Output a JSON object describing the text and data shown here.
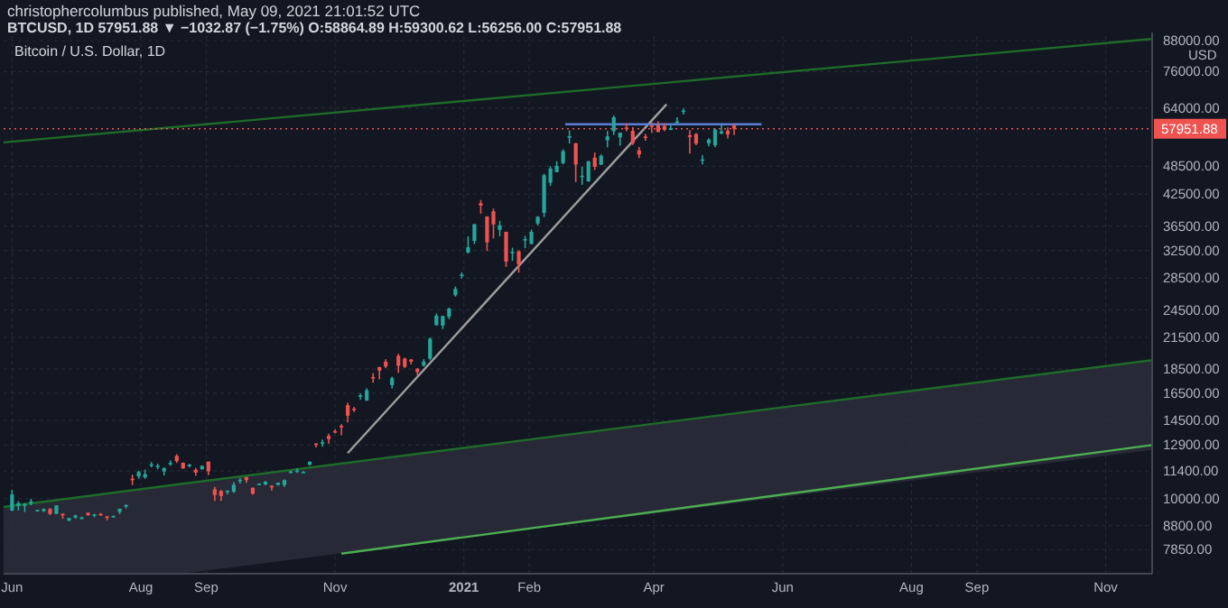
{
  "chart_data": {
    "type": "candlestick",
    "title": "christophercolumbus published, May 09, 2021 21:01:52 UTC",
    "subtitle": "BTCUSD, 1D 57951.88 ▼ −1032.87 (−1.75%) O:58864.89 H:59300.62 L:56256.00 C:57951.88",
    "annotations": [
      "Bitcoin / U.S. Dollar, 1D"
    ],
    "ylabel": "USD",
    "log": true,
    "grid": true,
    "xlim": [
      "2020-05-28",
      "2021-11-23"
    ],
    "xticks": [
      {
        "value": "2020-06-01",
        "label": "Jun"
      },
      {
        "value": "2020-08-01",
        "label": "Aug"
      },
      {
        "value": "2020-09-01",
        "label": "Sep"
      },
      {
        "value": "2020-11-01",
        "label": "Nov"
      },
      {
        "value": "2021-01-01",
        "label": "2021"
      },
      {
        "value": "2021-02-01",
        "label": "Feb"
      },
      {
        "value": "2021-04-01",
        "label": "Apr"
      },
      {
        "value": "2021-06-01",
        "label": "Jun"
      },
      {
        "value": "2021-08-01",
        "label": "Aug"
      },
      {
        "value": "2021-09-01",
        "label": "Sep"
      },
      {
        "value": "2021-11-01",
        "label": "Nov"
      }
    ],
    "ylim": [
      7000,
      90000
    ],
    "yticks": [
      {
        "value": 7850,
        "label": "7850.00"
      },
      {
        "value": 8800,
        "label": "8800.00"
      },
      {
        "value": 10000,
        "label": "10000.00"
      },
      {
        "value": 11400,
        "label": "11400.00"
      },
      {
        "value": 12900,
        "label": "12900.00"
      },
      {
        "value": 14500,
        "label": "14500.00"
      },
      {
        "value": 16500,
        "label": "16500.00"
      },
      {
        "value": 18500,
        "label": "18500.00"
      },
      {
        "value": 21500,
        "label": "21500.00"
      },
      {
        "value": 24500,
        "label": "24500.00"
      },
      {
        "value": 28500,
        "label": "28500.00"
      },
      {
        "value": 32500,
        "label": "32500.00"
      },
      {
        "value": 36500,
        "label": "36500.00"
      },
      {
        "value": 42500,
        "label": "42500.00"
      },
      {
        "value": 48500,
        "label": "48500.00"
      },
      {
        "value": 64000,
        "label": "64000.00"
      },
      {
        "value": 76000,
        "label": "76000.00"
      },
      {
        "value": 88000,
        "label": "88000.00"
      }
    ],
    "ref_lines": [
      {
        "axis": "y",
        "value": 57951.88,
        "label": "57951.88",
        "color": "#ef5350",
        "line_style": "dotted"
      }
    ],
    "x": [
      "2020-06-01",
      "2020-06-04",
      "2020-06-07",
      "2020-06-10",
      "2020-06-13",
      "2020-06-16",
      "2020-06-19",
      "2020-06-22",
      "2020-06-25",
      "2020-06-28",
      "2020-07-01",
      "2020-07-04",
      "2020-07-07",
      "2020-07-10",
      "2020-07-13",
      "2020-07-16",
      "2020-07-19",
      "2020-07-22",
      "2020-07-25",
      "2020-07-28",
      "2020-07-31",
      "2020-08-03",
      "2020-08-06",
      "2020-08-09",
      "2020-08-12",
      "2020-08-15",
      "2020-08-18",
      "2020-08-21",
      "2020-08-24",
      "2020-08-27",
      "2020-08-30",
      "2020-09-02",
      "2020-09-05",
      "2020-09-08",
      "2020-09-11",
      "2020-09-14",
      "2020-09-17",
      "2020-09-20",
      "2020-09-23",
      "2020-09-26",
      "2020-09-29",
      "2020-10-02",
      "2020-10-05",
      "2020-10-08",
      "2020-10-11",
      "2020-10-14",
      "2020-10-17",
      "2020-10-20",
      "2020-10-23",
      "2020-10-26",
      "2020-10-29",
      "2020-11-01",
      "2020-11-04",
      "2020-11-07",
      "2020-11-10",
      "2020-11-13",
      "2020-11-16",
      "2020-11-19",
      "2020-11-22",
      "2020-11-25",
      "2020-11-28",
      "2020-12-01",
      "2020-12-04",
      "2020-12-07",
      "2020-12-10",
      "2020-12-13",
      "2020-12-16",
      "2020-12-19",
      "2020-12-22",
      "2020-12-25",
      "2020-12-28",
      "2020-12-31",
      "2021-01-03",
      "2021-01-06",
      "2021-01-09",
      "2021-01-12",
      "2021-01-15",
      "2021-01-18",
      "2021-01-21",
      "2021-01-24",
      "2021-01-27",
      "2021-01-30",
      "2021-02-02",
      "2021-02-05",
      "2021-02-08",
      "2021-02-11",
      "2021-02-14",
      "2021-02-17",
      "2021-02-20",
      "2021-02-23",
      "2021-02-26",
      "2021-03-01",
      "2021-03-04",
      "2021-03-07",
      "2021-03-10",
      "2021-03-13",
      "2021-03-16",
      "2021-03-19",
      "2021-03-22",
      "2021-03-25",
      "2021-03-28",
      "2021-03-31",
      "2021-04-03",
      "2021-04-06",
      "2021-04-09",
      "2021-04-12",
      "2021-04-15",
      "2021-04-18",
      "2021-04-21",
      "2021-04-24",
      "2021-04-27",
      "2021-04-30",
      "2021-05-03",
      "2021-05-06",
      "2021-05-09"
    ],
    "ohlc": [
      [
        9450,
        10430,
        9420,
        10200
      ],
      [
        9660,
        9880,
        9450,
        9790
      ],
      [
        9670,
        9800,
        9380,
        9750
      ],
      [
        9780,
        9990,
        9690,
        9870
      ],
      [
        9470,
        9490,
        9400,
        9480
      ],
      [
        9430,
        9550,
        9380,
        9520
      ],
      [
        9520,
        9560,
        9250,
        9300
      ],
      [
        9300,
        9690,
        9290,
        9680
      ],
      [
        9300,
        9330,
        9090,
        9250
      ],
      [
        9010,
        9130,
        8980,
        9120
      ],
      [
        9140,
        9270,
        9090,
        9230
      ],
      [
        9080,
        9190,
        9070,
        9140
      ],
      [
        9350,
        9370,
        9210,
        9250
      ],
      [
        9240,
        9300,
        9150,
        9280
      ],
      [
        9300,
        9340,
        9220,
        9240
      ],
      [
        9190,
        9210,
        9020,
        9130
      ],
      [
        9170,
        9230,
        9130,
        9210
      ],
      [
        9390,
        9540,
        9290,
        9530
      ],
      [
        9630,
        9730,
        9550,
        9700
      ],
      [
        10990,
        11200,
        10660,
        10920
      ],
      [
        11110,
        11420,
        10990,
        11350
      ],
      [
        11060,
        11480,
        10990,
        11230
      ],
      [
        11760,
        11900,
        11600,
        11770
      ],
      [
        11690,
        11810,
        11500,
        11690
      ],
      [
        11380,
        11600,
        11160,
        11560
      ],
      [
        11790,
        11990,
        11690,
        11850
      ],
      [
        12250,
        12350,
        11850,
        11950
      ],
      [
        11850,
        11880,
        11530,
        11540
      ],
      [
        11660,
        11800,
        11600,
        11750
      ],
      [
        11470,
        11570,
        11150,
        11320
      ],
      [
        11500,
        11710,
        11470,
        11680
      ],
      [
        11920,
        11940,
        11180,
        11390
      ],
      [
        10450,
        10570,
        9880,
        10170
      ],
      [
        10370,
        10420,
        9890,
        10130
      ],
      [
        10340,
        10390,
        10200,
        10390
      ],
      [
        10330,
        10810,
        10270,
        10680
      ],
      [
        10940,
        11040,
        10750,
        10940
      ],
      [
        11080,
        11080,
        10780,
        10920
      ],
      [
        10530,
        10540,
        10180,
        10240
      ],
      [
        10690,
        10760,
        10650,
        10730
      ],
      [
        10700,
        10870,
        10650,
        10840
      ],
      [
        10620,
        10660,
        10390,
        10570
      ],
      [
        10670,
        10790,
        10640,
        10790
      ],
      [
        10670,
        10950,
        10560,
        10920
      ],
      [
        11300,
        11420,
        11280,
        11380
      ],
      [
        11430,
        11550,
        11300,
        11430
      ],
      [
        11330,
        11400,
        11300,
        11360
      ],
      [
        11750,
        11930,
        11690,
        11920
      ],
      [
        12990,
        13020,
        12750,
        12930
      ],
      [
        13040,
        13240,
        12800,
        13070
      ],
      [
        13470,
        13620,
        12980,
        13270
      ],
      [
        13780,
        13900,
        13650,
        13740
      ],
      [
        14130,
        14240,
        13520,
        14030
      ],
      [
        15590,
        15770,
        14360,
        14830
      ],
      [
        15330,
        15460,
        15090,
        15320
      ],
      [
        16290,
        16480,
        15990,
        16330
      ],
      [
        15950,
        16880,
        15900,
        16740
      ],
      [
        17820,
        18140,
        17350,
        17810
      ],
      [
        18680,
        18700,
        17640,
        18370
      ],
      [
        19160,
        19390,
        18580,
        18730
      ],
      [
        17150,
        17850,
        16880,
        17730
      ],
      [
        19700,
        19900,
        18180,
        18800
      ],
      [
        19450,
        19540,
        18590,
        18700
      ],
      [
        19360,
        19420,
        18920,
        19170
      ],
      [
        18550,
        18560,
        17950,
        18250
      ],
      [
        18810,
        19400,
        18730,
        19170
      ],
      [
        19440,
        21500,
        19300,
        21380
      ],
      [
        22800,
        24100,
        22750,
        23850
      ],
      [
        22750,
        23830,
        22380,
        23820
      ],
      [
        23730,
        24780,
        23460,
        24660
      ],
      [
        26280,
        27390,
        26110,
        27080
      ],
      [
        28890,
        29300,
        28430,
        28990
      ],
      [
        32190,
        34780,
        32050,
        33000
      ],
      [
        34010,
        36880,
        33530,
        36820
      ],
      [
        40670,
        41320,
        38720,
        40240
      ],
      [
        38200,
        38240,
        32420,
        33780
      ],
      [
        39150,
        39660,
        34410,
        36770
      ],
      [
        35840,
        37420,
        34760,
        36630
      ],
      [
        35510,
        35550,
        30070,
        30830
      ],
      [
        32100,
        32940,
        30930,
        32290
      ],
      [
        32370,
        32520,
        29240,
        30430
      ],
      [
        34260,
        34850,
        32860,
        34310
      ],
      [
        33540,
        35910,
        33450,
        35510
      ],
      [
        36940,
        38280,
        36600,
        38140
      ],
      [
        38860,
        46800,
        38100,
        46480
      ],
      [
        44830,
        48500,
        44180,
        47970
      ],
      [
        47160,
        49650,
        47130,
        48580
      ],
      [
        49210,
        52570,
        48960,
        52100
      ],
      [
        55890,
        57510,
        54020,
        55920
      ],
      [
        54090,
        54180,
        45000,
        48890
      ],
      [
        46300,
        48400,
        44400,
        46370
      ],
      [
        45140,
        49790,
        45040,
        49630
      ],
      [
        50520,
        51740,
        47640,
        48370
      ],
      [
        48860,
        51300,
        48770,
        50970
      ],
      [
        54880,
        57350,
        53070,
        55890
      ],
      [
        57250,
        61700,
        56240,
        61190
      ],
      [
        55600,
        56900,
        53450,
        56880
      ],
      [
        58300,
        59450,
        57280,
        58100
      ],
      [
        57360,
        58400,
        53650,
        54090
      ],
      [
        52300,
        53150,
        50430,
        51290
      ],
      [
        55850,
        56530,
        54720,
        55770
      ],
      [
        58770,
        59760,
        56850,
        58740
      ],
      [
        59000,
        60000,
        57000,
        57060
      ],
      [
        58740,
        59440,
        57240,
        57640
      ],
      [
        57630,
        59040,
        57600,
        58120
      ],
      [
        59780,
        61180,
        59420,
        60000
      ],
      [
        62960,
        63800,
        62000,
        63190
      ],
      [
        56200,
        57600,
        51500,
        55720
      ],
      [
        56480,
        56800,
        53600,
        54000
      ],
      [
        49900,
        51100,
        48900,
        50100
      ],
      [
        54070,
        55400,
        53300,
        55030
      ],
      [
        53570,
        58000,
        53100,
        57700
      ],
      [
        56620,
        58950,
        56480,
        57230
      ],
      [
        57440,
        58320,
        55320,
        56400
      ],
      [
        58864.89,
        59300.62,
        56256.0,
        57951.88
      ]
    ],
    "series": [
      {
        "type": "line",
        "color": "#1e6b2a",
        "x": [
          "2020-05-28",
          "2021-11-23"
        ],
        "values": [
          54300,
          88800
        ]
      },
      {
        "type": "line",
        "color": "#1e6b2a",
        "x": [
          "2020-05-28",
          "2020-08-20",
          "2021-11-23"
        ],
        "values": [
          9610,
          10720,
          19300
        ],
        "lower": [
          7000,
          7000,
          12600
        ],
        "upper": [
          9610,
          10720,
          19300
        ]
      },
      {
        "type": "line",
        "color": "#4caf50",
        "x": [
          "2020-11-04",
          "2021-11-23"
        ],
        "values": [
          7700,
          12900
        ]
      },
      {
        "type": "line",
        "color": "#9e9e9e",
        "x": [
          "2020-11-07",
          "2021-04-07"
        ],
        "values": [
          12420,
          65100
        ]
      },
      {
        "type": "line",
        "color": "#5b7fd6",
        "x": [
          "2021-02-18",
          "2021-05-22"
        ],
        "values": [
          59200,
          59200
        ]
      }
    ]
  }
}
